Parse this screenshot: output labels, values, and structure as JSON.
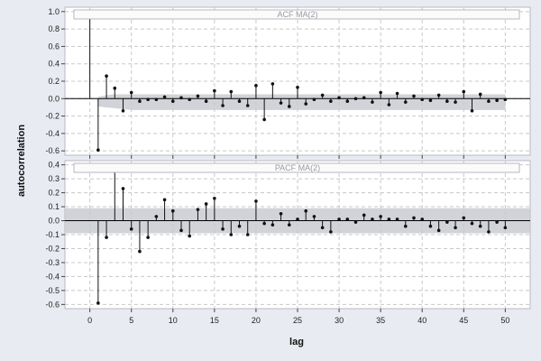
{
  "ylabel": "autocorrelation",
  "xlabel": "lag",
  "colors": {
    "background": "#e9ebf2",
    "panel": "#ffffff",
    "grid": "#c8c8c8",
    "band": "#c9cbd1",
    "stem": "#111111",
    "title_box_border": "#a8a8b0"
  },
  "chart_data": [
    {
      "type": "stem",
      "title": "ACF MA(2)",
      "xlim": [
        -3,
        53
      ],
      "ylim": [
        -0.65,
        1.05
      ],
      "xticks": [
        0,
        5,
        10,
        15,
        20,
        25,
        30,
        35,
        40,
        45,
        50
      ],
      "yticks": [
        1.0,
        0.8,
        0.6,
        0.4,
        0.2,
        0.0,
        -0.2,
        -0.4,
        -0.6
      ],
      "ytick_labels": [
        "1.0",
        "0.8",
        "0.6",
        "0.4",
        "0.2",
        "0.0",
        "-0.2",
        "-0.4",
        "-0.6"
      ],
      "grid": true,
      "x": [
        0,
        1,
        2,
        3,
        4,
        5,
        6,
        7,
        8,
        9,
        10,
        11,
        12,
        13,
        14,
        15,
        16,
        17,
        18,
        19,
        20,
        21,
        22,
        23,
        24,
        25,
        26,
        27,
        28,
        29,
        30,
        31,
        32,
        33,
        34,
        35,
        36,
        37,
        38,
        39,
        40,
        41,
        42,
        43,
        44,
        45,
        46,
        47,
        48,
        49,
        50
      ],
      "values": [
        1.0,
        -0.59,
        0.26,
        0.12,
        -0.14,
        0.07,
        -0.03,
        -0.01,
        -0.01,
        0.02,
        -0.03,
        0.01,
        -0.01,
        0.03,
        -0.03,
        0.09,
        -0.08,
        0.08,
        -0.03,
        -0.08,
        0.15,
        -0.24,
        0.17,
        -0.05,
        -0.09,
        0.13,
        -0.06,
        -0.01,
        0.04,
        -0.03,
        0.01,
        -0.03,
        0.0,
        0.01,
        -0.04,
        0.07,
        -0.07,
        0.06,
        -0.04,
        0.03,
        -0.01,
        -0.02,
        0.04,
        -0.03,
        -0.04,
        0.08,
        -0.14,
        0.05,
        -0.03,
        -0.02,
        -0.01
      ],
      "confidence_band": {
        "lag": [
          1,
          2,
          3,
          4,
          5,
          6,
          7,
          8,
          9,
          10,
          11,
          12,
          13,
          14,
          15,
          16,
          17,
          18,
          19,
          20,
          21,
          22,
          23,
          24,
          25,
          26,
          27,
          28,
          29,
          30,
          31,
          32,
          33,
          34,
          35,
          36,
          37,
          38,
          39,
          40,
          41,
          42,
          43,
          44,
          45,
          46,
          47,
          48,
          49,
          50
        ],
        "upper": [
          0.02,
          0.04,
          0.05,
          0.05,
          0.05,
          0.05,
          0.05,
          0.05,
          0.05,
          0.05,
          0.05,
          0.05,
          0.05,
          0.05,
          0.05,
          0.05,
          0.05,
          0.05,
          0.05,
          0.05,
          0.05,
          0.05,
          0.05,
          0.05,
          0.05,
          0.05,
          0.05,
          0.05,
          0.05,
          0.05,
          0.05,
          0.05,
          0.05,
          0.05,
          0.05,
          0.05,
          0.05,
          0.05,
          0.05,
          0.05,
          0.05,
          0.05,
          0.05,
          0.05,
          0.05,
          0.05,
          0.05,
          0.05,
          0.05,
          0.05
        ],
        "lower": [
          -0.09,
          -0.1,
          -0.11,
          -0.12,
          -0.13,
          -0.13,
          -0.13,
          -0.13,
          -0.13,
          -0.13,
          -0.13,
          -0.13,
          -0.13,
          -0.13,
          -0.13,
          -0.13,
          -0.13,
          -0.13,
          -0.13,
          -0.13,
          -0.13,
          -0.13,
          -0.13,
          -0.13,
          -0.13,
          -0.13,
          -0.13,
          -0.13,
          -0.13,
          -0.13,
          -0.13,
          -0.13,
          -0.13,
          -0.13,
          -0.13,
          -0.13,
          -0.13,
          -0.13,
          -0.13,
          -0.13,
          -0.13,
          -0.13,
          -0.13,
          -0.13,
          -0.13,
          -0.13,
          -0.13,
          -0.13,
          -0.13,
          -0.13
        ]
      }
    },
    {
      "type": "stem",
      "title": "PACF MA(2)",
      "xlim": [
        -3,
        53
      ],
      "ylim": [
        -0.63,
        0.43
      ],
      "xticks": [
        0,
        5,
        10,
        15,
        20,
        25,
        30,
        35,
        40,
        45,
        50
      ],
      "xtick_labels": [
        "0",
        "5",
        "10",
        "15",
        "20",
        "25",
        "30",
        "35",
        "40",
        "45",
        "50"
      ],
      "yticks": [
        0.4,
        0.3,
        0.2,
        0.1,
        0.0,
        -0.1,
        -0.2,
        -0.3,
        -0.4,
        -0.5,
        -0.6
      ],
      "ytick_labels": [
        "0.4",
        "0.3",
        "0.2",
        "0.1",
        "0.0",
        "-0.1",
        "-0.2",
        "-0.3",
        "-0.4",
        "-0.5",
        "-0.6"
      ],
      "grid": true,
      "x": [
        0,
        1,
        2,
        3,
        4,
        5,
        6,
        7,
        8,
        9,
        10,
        11,
        12,
        13,
        14,
        15,
        16,
        17,
        18,
        19,
        20,
        21,
        22,
        23,
        24,
        25,
        26,
        27,
        28,
        29,
        30,
        31,
        32,
        33,
        34,
        35,
        36,
        37,
        38,
        39,
        40,
        41,
        42,
        43,
        44,
        45,
        46,
        47,
        48,
        49,
        50
      ],
      "values": [
        0.0,
        -0.59,
        -0.12,
        0.37,
        0.23,
        -0.06,
        -0.22,
        -0.12,
        0.03,
        0.15,
        0.07,
        -0.07,
        -0.11,
        0.08,
        0.12,
        0.16,
        -0.06,
        -0.1,
        -0.04,
        -0.1,
        0.14,
        -0.02,
        -0.03,
        0.05,
        -0.03,
        0.01,
        0.07,
        0.03,
        -0.05,
        -0.08,
        0.01,
        0.01,
        -0.01,
        0.04,
        0.01,
        0.03,
        0.01,
        0.01,
        -0.04,
        0.02,
        0.01,
        -0.04,
        -0.07,
        -0.01,
        -0.05,
        0.02,
        -0.02,
        -0.04,
        -0.08,
        -0.01,
        -0.05
      ],
      "confidence_band": {
        "upper": 0.09,
        "lower": -0.09
      }
    }
  ]
}
